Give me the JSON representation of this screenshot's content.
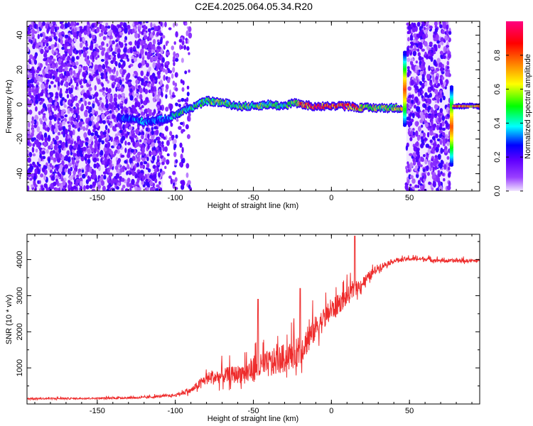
{
  "title": "C2E4.2025.064.05.34.R20",
  "chart_data": [
    {
      "type": "heatmap",
      "title": "C2E4.2025.064.05.34.R20",
      "xlabel": "Height of straight line (km)",
      "ylabel": "Frequency (Hz)",
      "xlim": [
        -195,
        95
      ],
      "ylim": [
        -50,
        48
      ],
      "xticks": [
        -150,
        -100,
        -50,
        0,
        50
      ],
      "yticks": [
        -40,
        -20,
        0,
        20,
        40
      ],
      "colorbar": {
        "label": "Normalized spectral amplitude",
        "range": [
          0,
          1
        ],
        "ticks": [
          "0.0",
          "0.2",
          "0.4",
          "0.6",
          "0.8"
        ],
        "colormap": [
          "#f0e4ff",
          "#7f00ff",
          "#0000ff",
          "#00ffff",
          "#00ff00",
          "#ffff00",
          "#ff8000",
          "#ff0000",
          "#ff0080"
        ]
      },
      "noise_regions": [
        {
          "x": [
            -195,
            -108
          ],
          "density": 1.0
        },
        {
          "x": [
            -108,
            -90
          ],
          "density": 0.35
        },
        {
          "x": [
            48,
            76
          ],
          "density": 1.0
        }
      ],
      "signal_track": {
        "x": [
          -137,
          -130,
          -120,
          -112,
          -105,
          -100,
          -95,
          -90,
          -80,
          -70,
          -60,
          -50,
          -40,
          -30,
          -25,
          -20,
          -10,
          0,
          10,
          20,
          30,
          40,
          45
        ],
        "freq": [
          -8,
          -8,
          -10,
          -9,
          -8,
          -6,
          -4,
          -2,
          2,
          1,
          -1,
          -1,
          0,
          -1,
          1,
          0,
          -1,
          -1,
          -1,
          -2,
          -2,
          -2,
          -2
        ],
        "amplitude": [
          0.25,
          0.3,
          0.35,
          0.3,
          0.3,
          0.4,
          0.45,
          0.45,
          0.5,
          0.5,
          0.5,
          0.5,
          0.45,
          0.45,
          0.5,
          0.7,
          0.85,
          0.8,
          0.85,
          0.6,
          0.55,
          0.55,
          0.6
        ]
      },
      "spikes": [
        {
          "x": 47,
          "f_range": [
            -12,
            30
          ]
        },
        {
          "x": 77,
          "f_range": [
            -35,
            10
          ]
        }
      ],
      "tail_track": {
        "x": [
          78,
          95
        ],
        "freq": -1,
        "amplitude": 0.7
      }
    },
    {
      "type": "line",
      "xlabel": "Height of straight line (km)",
      "ylabel": "SNR (10 * v/v)",
      "xlim": [
        -195,
        95
      ],
      "ylim": [
        0,
        4700
      ],
      "xticks": [
        -150,
        -100,
        -50,
        0,
        50
      ],
      "yticks": [
        1000,
        2000,
        3000,
        4000
      ],
      "color": "#ee2c2c",
      "series": [
        {
          "x": [
            -195,
            -150,
            -120,
            -100,
            -90,
            -80,
            -70,
            -60,
            -50,
            -40,
            -30,
            -20,
            -10,
            0,
            10,
            20,
            30,
            40,
            50,
            60,
            70,
            80,
            95
          ],
          "values": [
            140,
            150,
            170,
            230,
            350,
            650,
            700,
            750,
            850,
            1000,
            1150,
            1350,
            2000,
            2500,
            2900,
            3300,
            3750,
            3950,
            4000,
            4000,
            3950,
            3950,
            3950
          ],
          "noise": [
            50,
            50,
            60,
            80,
            150,
            350,
            450,
            500,
            700,
            750,
            800,
            800,
            700,
            600,
            500,
            350,
            200,
            120,
            100,
            100,
            100,
            100,
            100
          ]
        }
      ],
      "annotations": [
        {
          "x": 15,
          "value": 4650
        },
        {
          "x": -47,
          "value": 2900
        },
        {
          "x": -20,
          "value": 3200
        }
      ]
    }
  ]
}
